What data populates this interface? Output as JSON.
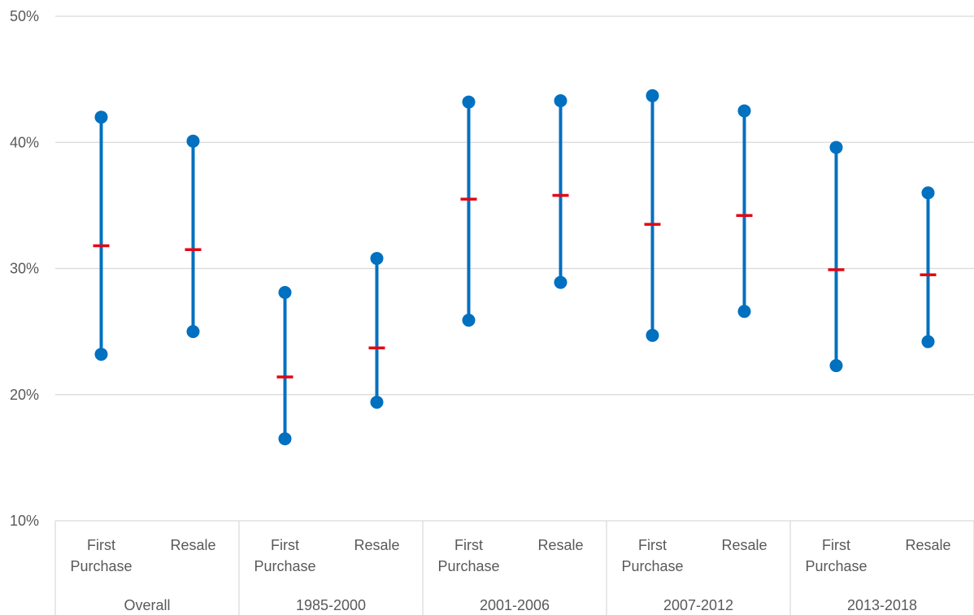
{
  "chart_data": {
    "type": "range-dot",
    "title": "",
    "xlabel": "",
    "ylabel": "",
    "ylim": [
      0.1,
      0.5
    ],
    "yticks": [
      "10%",
      "20%",
      "30%",
      "40%",
      "50%"
    ],
    "grid": true,
    "colors": {
      "range": "#0070C0",
      "median": "#E30613",
      "grid": "#D9D9D9",
      "text": "#595959"
    },
    "groups": [
      {
        "name": "Overall",
        "categories": [
          {
            "label": [
              "First",
              "Purchase"
            ],
            "low": 0.232,
            "mid": 0.318,
            "high": 0.42
          },
          {
            "label": [
              "Resale"
            ],
            "low": 0.25,
            "mid": 0.315,
            "high": 0.401
          }
        ]
      },
      {
        "name": "1985-2000",
        "categories": [
          {
            "label": [
              "First",
              "Purchase"
            ],
            "low": 0.165,
            "mid": 0.214,
            "high": 0.281
          },
          {
            "label": [
              "Resale"
            ],
            "low": 0.194,
            "mid": 0.237,
            "high": 0.308
          }
        ]
      },
      {
        "name": "2001-2006",
        "categories": [
          {
            "label": [
              "First",
              "Purchase"
            ],
            "low": 0.259,
            "mid": 0.355,
            "high": 0.432
          },
          {
            "label": [
              "Resale"
            ],
            "low": 0.289,
            "mid": 0.358,
            "high": 0.433
          }
        ]
      },
      {
        "name": "2007-2012",
        "categories": [
          {
            "label": [
              "First",
              "Purchase"
            ],
            "low": 0.247,
            "mid": 0.335,
            "high": 0.437
          },
          {
            "label": [
              "Resale"
            ],
            "low": 0.266,
            "mid": 0.342,
            "high": 0.425
          }
        ]
      },
      {
        "name": "2013-2018",
        "categories": [
          {
            "label": [
              "First",
              "Purchase"
            ],
            "low": 0.223,
            "mid": 0.299,
            "high": 0.396
          },
          {
            "label": [
              "Resale"
            ],
            "low": 0.242,
            "mid": 0.295,
            "high": 0.36
          }
        ]
      }
    ]
  }
}
